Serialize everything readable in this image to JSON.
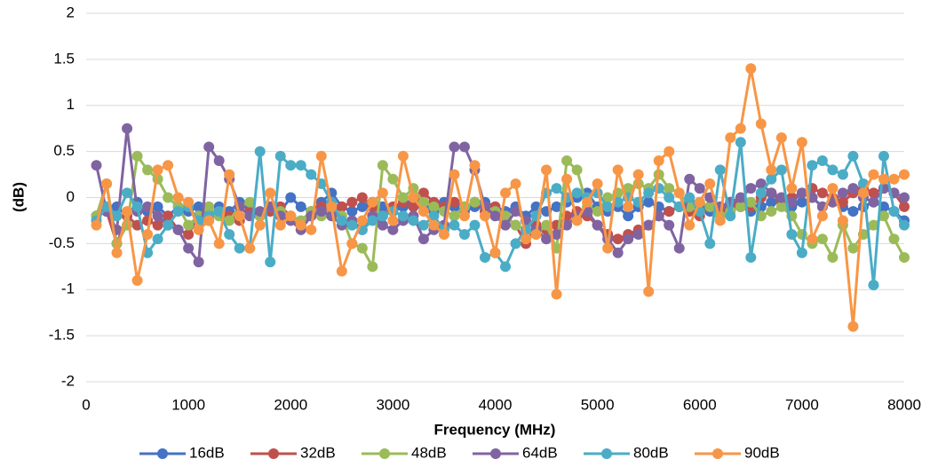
{
  "chart_data": {
    "type": "line",
    "x_label": "Frequency (MHz)",
    "y_label": "(dB)",
    "xlim": [
      0,
      8000
    ],
    "xticks": [
      0,
      1000,
      2000,
      3000,
      4000,
      5000,
      6000,
      7000,
      8000
    ],
    "ylim": [
      -2,
      2
    ],
    "yticks": [
      -2,
      -1.5,
      -1,
      -0.5,
      0,
      0.5,
      1,
      1.5,
      2
    ],
    "grid": true,
    "legend": "bottom",
    "x": [
      100,
      200,
      300,
      400,
      500,
      600,
      700,
      800,
      900,
      1000,
      1100,
      1200,
      1300,
      1400,
      1500,
      1600,
      1700,
      1800,
      1900,
      2000,
      2100,
      2200,
      2300,
      2400,
      2500,
      2600,
      2700,
      2800,
      2900,
      3000,
      3100,
      3200,
      3300,
      3400,
      3500,
      3600,
      3700,
      3800,
      3900,
      4000,
      4100,
      4200,
      4300,
      4400,
      4500,
      4600,
      4700,
      4800,
      4900,
      5000,
      5100,
      5200,
      5300,
      5400,
      5500,
      5600,
      5700,
      5800,
      5900,
      6000,
      6100,
      6200,
      6300,
      6400,
      6500,
      6600,
      6700,
      6800,
      6900,
      7000,
      7100,
      7200,
      7300,
      7400,
      7500,
      7600,
      7700,
      7800,
      7900,
      8000
    ],
    "series": [
      {
        "name": "16dB",
        "color": "#4472c4",
        "values": [
          -0.2,
          -0.15,
          -0.1,
          -0.2,
          -0.05,
          -0.15,
          -0.1,
          -0.2,
          -0.1,
          -0.15,
          -0.1,
          -0.2,
          -0.1,
          -0.15,
          -0.05,
          -0.1,
          -0.2,
          -0.1,
          -0.15,
          0,
          -0.1,
          -0.15,
          -0.05,
          0.05,
          -0.1,
          -0.15,
          -0.1,
          -0.05,
          -0.1,
          -0.15,
          -0.1,
          -0.05,
          -0.1,
          -0.15,
          -0.05,
          -0.1,
          -0.15,
          -0.1,
          -0.05,
          -0.1,
          -0.15,
          -0.1,
          -0.2,
          -0.1,
          -0.15,
          -0.1,
          -0.05,
          0,
          0.05,
          -0.1,
          -0.15,
          -0.1,
          -0.2,
          -0.1,
          -0.05,
          -0.1,
          -0.15,
          -0.1,
          -0.05,
          -0.1,
          -0.15,
          -0.1,
          -0.05,
          -0.1,
          -0.15,
          -0.1,
          -0.05,
          0,
          -0.1,
          -0.05,
          0,
          -0.1,
          -0.05,
          -0.1,
          -0.15,
          -0.1,
          -0.05,
          -0.1,
          -0.15,
          -0.25
        ]
      },
      {
        "name": "32dB",
        "color": "#c0504d",
        "values": [
          -0.2,
          -0.15,
          -0.5,
          -0.2,
          -0.3,
          -0.25,
          -0.3,
          -0.2,
          -0.35,
          -0.4,
          -0.2,
          -0.25,
          -0.15,
          -0.2,
          -0.25,
          -0.15,
          -0.2,
          -0.15,
          -0.1,
          -0.2,
          -0.3,
          -0.2,
          -0.1,
          -0.15,
          -0.1,
          -0.05,
          0,
          -0.1,
          -0.2,
          -0.1,
          -0.05,
          -0.1,
          0.05,
          -0.05,
          -0.1,
          -0.05,
          -0.1,
          -0.05,
          -0.15,
          -0.1,
          -0.2,
          -0.3,
          -0.5,
          -0.3,
          -0.35,
          -0.3,
          -0.2,
          -0.15,
          -0.2,
          -0.3,
          -0.4,
          -0.45,
          -0.4,
          -0.35,
          -0.3,
          -0.2,
          -0.15,
          -0.1,
          -0.15,
          -0.2,
          -0.1,
          -0.15,
          -0.1,
          -0.05,
          -0.1,
          0,
          0.05,
          -0.05,
          0,
          0.05,
          0.1,
          0.05,
          0,
          -0.05,
          0.05,
          0.1,
          0.05,
          0.1,
          0.05,
          -0.1
        ]
      },
      {
        "name": "48dB",
        "color": "#9bbb59",
        "values": [
          -0.2,
          0.15,
          -0.5,
          -0.3,
          0.45,
          0.3,
          0.2,
          0,
          -0.1,
          -0.3,
          -0.2,
          -0.1,
          -0.2,
          -0.25,
          -0.1,
          -0.05,
          -0.2,
          -0.1,
          -0.15,
          -0.2,
          -0.25,
          -0.15,
          -0.2,
          -0.15,
          -0.2,
          -0.5,
          -0.55,
          -0.75,
          0.35,
          0.2,
          0,
          0.1,
          -0.05,
          -0.1,
          -0.15,
          -0.2,
          -0.1,
          -0.05,
          -0.1,
          -0.15,
          -0.2,
          -0.3,
          -0.35,
          -0.4,
          -0.3,
          -0.55,
          0.4,
          0.3,
          -0.1,
          -0.15,
          0,
          0.05,
          0.1,
          0.15,
          0.1,
          0.25,
          0.1,
          0.05,
          -0.1,
          -0.05,
          -0.1,
          -0.2,
          -0.15,
          -0.1,
          -0.05,
          -0.2,
          -0.15,
          -0.1,
          -0.2,
          -0.4,
          -0.5,
          -0.45,
          -0.65,
          -0.3,
          -0.55,
          -0.4,
          -0.3,
          -0.2,
          -0.45,
          -0.65
        ]
      },
      {
        "name": "64dB",
        "color": "#8064a2",
        "values": [
          0.35,
          -0.15,
          -0.35,
          0.75,
          -0.15,
          -0.1,
          -0.2,
          -0.3,
          -0.35,
          -0.55,
          -0.7,
          0.55,
          0.4,
          0.2,
          -0.1,
          -0.2,
          -0.15,
          -0.1,
          -0.2,
          -0.25,
          -0.35,
          -0.2,
          -0.15,
          -0.2,
          -0.3,
          -0.25,
          -0.35,
          -0.2,
          -0.3,
          -0.35,
          -0.25,
          -0.2,
          -0.45,
          -0.35,
          -0.3,
          0.55,
          0.55,
          0.3,
          -0.1,
          -0.2,
          -0.3,
          -0.15,
          -0.25,
          -0.35,
          -0.45,
          -0.4,
          -0.3,
          -0.2,
          -0.15,
          -0.3,
          -0.45,
          -0.6,
          -0.45,
          -0.4,
          -0.3,
          -0.2,
          -0.3,
          -0.55,
          0.2,
          0.1,
          0,
          -0.1,
          -0.05,
          0,
          0.1,
          0.15,
          0.05,
          0,
          -0.05,
          0.05,
          0,
          -0.1,
          -0.05,
          0.05,
          0.1,
          0,
          -0.05,
          0.1,
          0.05,
          0
        ]
      },
      {
        "name": "80dB",
        "color": "#4bacc6",
        "values": [
          -0.25,
          -0.1,
          -0.2,
          0.05,
          -0.1,
          -0.6,
          -0.45,
          -0.3,
          -0.15,
          -0.1,
          -0.25,
          -0.2,
          -0.15,
          -0.4,
          -0.55,
          -0.55,
          0.5,
          -0.7,
          0.45,
          0.35,
          0.35,
          0.25,
          0.15,
          -0.05,
          -0.25,
          -0.3,
          -0.35,
          -0.25,
          -0.2,
          -0.15,
          -0.2,
          -0.25,
          -0.3,
          -0.2,
          -0.35,
          -0.3,
          -0.4,
          -0.3,
          -0.65,
          -0.6,
          -0.75,
          -0.5,
          -0.35,
          -0.2,
          0.05,
          0.1,
          0,
          0.05,
          0,
          0.05,
          -0.1,
          -0.05,
          0,
          -0.05,
          0.05,
          0.1,
          0,
          -0.1,
          0,
          -0.15,
          -0.5,
          0.3,
          -0.2,
          0.6,
          -0.65,
          0.05,
          0.2,
          0.3,
          -0.4,
          -0.6,
          0.35,
          0.4,
          0.3,
          0.25,
          0.45,
          0.15,
          -0.95,
          0.45,
          -0.15,
          -0.3
        ]
      },
      {
        "name": "90dB",
        "color": "#f79646",
        "values": [
          -0.3,
          0.15,
          -0.6,
          -0.15,
          -0.9,
          -0.4,
          0.3,
          0.35,
          0,
          -0.05,
          -0.35,
          -0.25,
          -0.5,
          0.25,
          -0.2,
          -0.55,
          -0.3,
          0.05,
          -0.3,
          -0.2,
          -0.3,
          -0.35,
          0.45,
          -0.1,
          -0.8,
          -0.5,
          -0.25,
          -0.05,
          0.05,
          -0.25,
          0.45,
          0,
          -0.15,
          -0.3,
          -0.4,
          0.25,
          -0.2,
          0.35,
          -0.2,
          -0.6,
          0.05,
          0.15,
          -0.45,
          -0.4,
          0.3,
          -1.05,
          0.2,
          -0.25,
          -0.05,
          0.15,
          -0.55,
          0.3,
          -0.1,
          0.25,
          -1.02,
          0.4,
          0.5,
          0.05,
          -0.3,
          -0.05,
          0.15,
          -0.25,
          0.65,
          0.75,
          1.4,
          0.8,
          0.3,
          0.65,
          0.1,
          0.6,
          -0.45,
          -0.2,
          0.1,
          -0.25,
          -1.4,
          0.05,
          0.25,
          0.2,
          0.2,
          0.25
        ]
      }
    ]
  }
}
